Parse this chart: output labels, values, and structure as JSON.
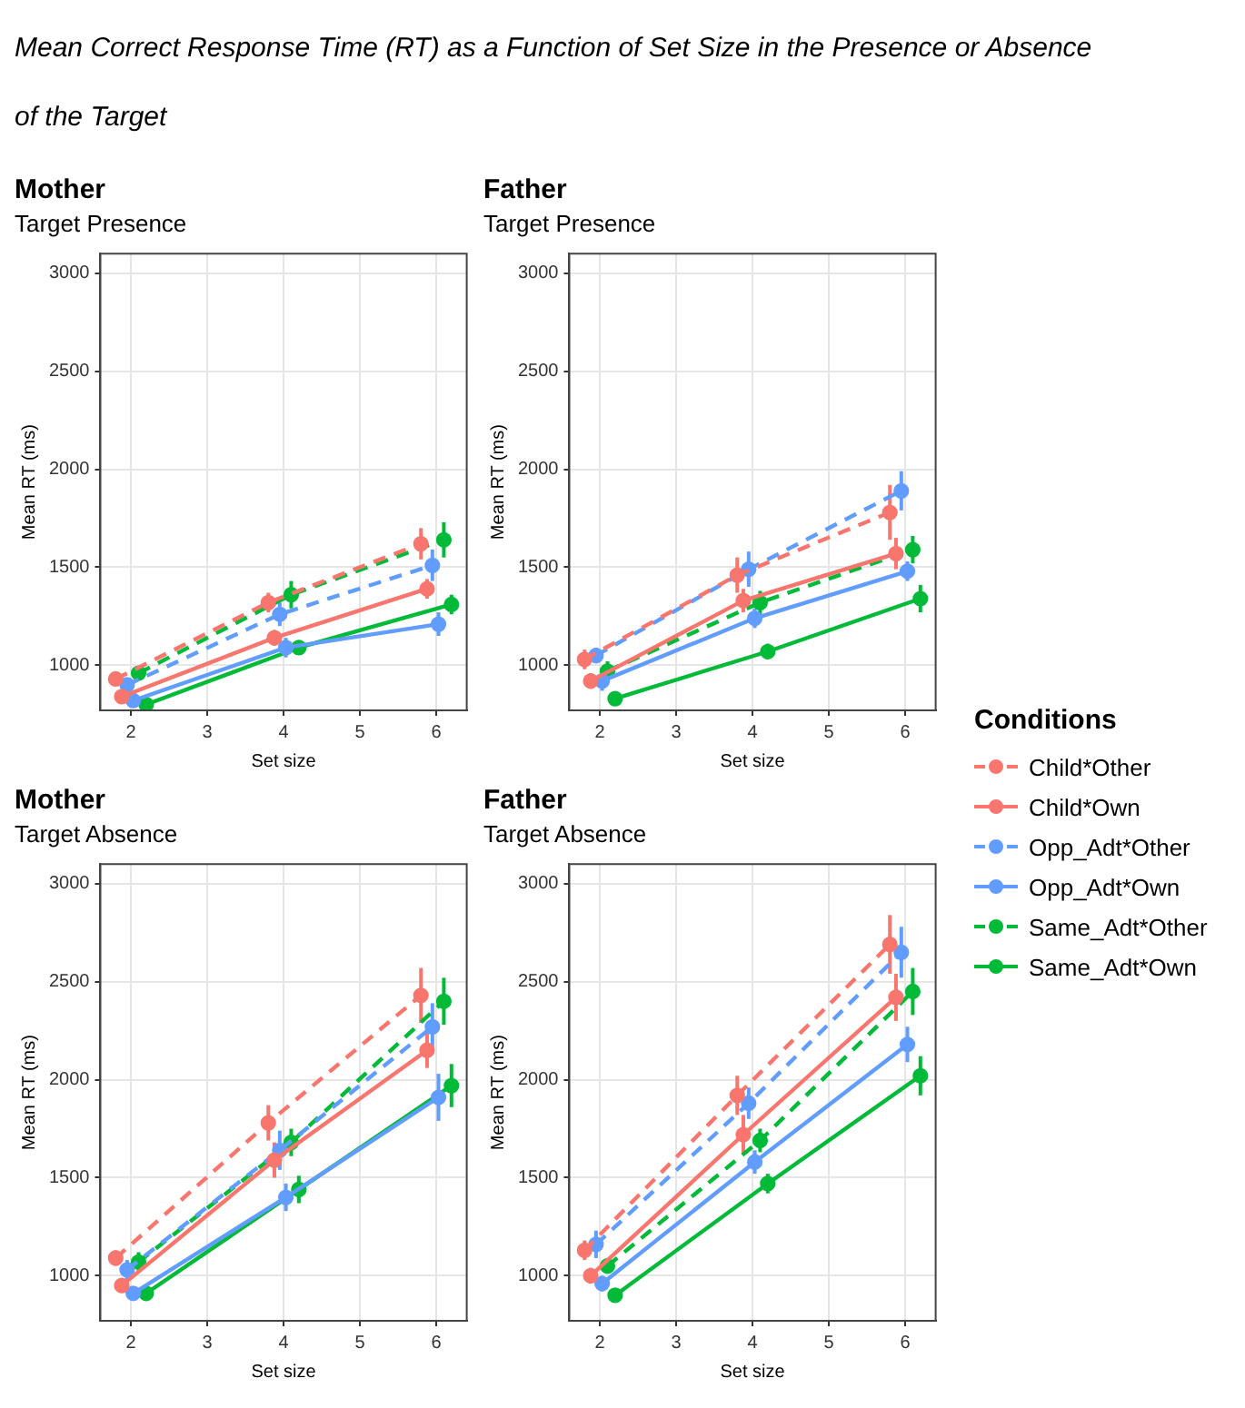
{
  "chart_data": [
    {
      "type": "line",
      "title": "Mother",
      "subtitle": "Target Presence",
      "annotations": [
        "Mean Correct Response Time (RT) as a Function of Set Size in the Presence or Absence of the Target"
      ],
      "legend_title": "Conditions",
      "legend": "right",
      "xlabel": "Set size",
      "ylabel": "Mean RT (ms)",
      "xlim": [
        1.6,
        6.4
      ],
      "xticks": [
        2,
        3,
        4,
        5,
        6
      ],
      "ylim": [
        770,
        3100
      ],
      "yticks": [
        1000,
        1500,
        2000,
        2500,
        3000
      ],
      "grid": true,
      "marker": "circle",
      "series": [
        {
          "name": "Child*Other",
          "color": "#f8766d",
          "line_style": "dashed",
          "x": [
            1.8,
            3.8,
            5.8
          ],
          "values": [
            930,
            1320,
            1620
          ],
          "errors": [
            30,
            50,
            80
          ]
        },
        {
          "name": "Child*Own",
          "color": "#f8766d",
          "line_style": "solid",
          "x": [
            1.88,
            3.88,
            5.88
          ],
          "values": [
            840,
            1140,
            1390
          ],
          "errors": [
            30,
            40,
            50
          ]
        },
        {
          "name": "Opp_Adt*Other",
          "color": "#619cff",
          "line_style": "dashed",
          "x": [
            1.95,
            3.95,
            5.95
          ],
          "values": [
            900,
            1260,
            1510
          ],
          "errors": [
            30,
            60,
            80
          ]
        },
        {
          "name": "Opp_Adt*Own",
          "color": "#619cff",
          "line_style": "solid",
          "x": [
            2.03,
            4.03,
            6.03
          ],
          "values": [
            820,
            1090,
            1210
          ],
          "errors": [
            30,
            50,
            60
          ]
        },
        {
          "name": "Same_Adt*Other",
          "color": "#00ba38",
          "line_style": "dashed",
          "x": [
            2.1,
            4.1,
            6.1
          ],
          "values": [
            960,
            1360,
            1640
          ],
          "errors": [
            30,
            70,
            90
          ]
        },
        {
          "name": "Same_Adt*Own",
          "color": "#00ba38",
          "line_style": "solid",
          "x": [
            2.2,
            4.2,
            6.2
          ],
          "values": [
            800,
            1090,
            1310
          ],
          "errors": [
            20,
            30,
            50
          ]
        }
      ]
    },
    {
      "type": "line",
      "title": "Father",
      "subtitle": "Target Presence",
      "xlabel": "Set size",
      "ylabel": "Mean RT (ms)",
      "xlim": [
        1.6,
        6.4
      ],
      "xticks": [
        2,
        3,
        4,
        5,
        6
      ],
      "ylim": [
        770,
        3100
      ],
      "yticks": [
        1000,
        1500,
        2000,
        2500,
        3000
      ],
      "grid": true,
      "marker": "circle",
      "series": [
        {
          "color": "#f8766d",
          "line_style": "dashed",
          "x": [
            1.8,
            3.8,
            5.8
          ],
          "values": [
            1030,
            1460,
            1780
          ],
          "errors": [
            50,
            90,
            140
          ]
        },
        {
          "color": "#f8766d",
          "line_style": "solid",
          "x": [
            1.88,
            3.88,
            5.88
          ],
          "values": [
            920,
            1330,
            1570
          ],
          "errors": [
            40,
            60,
            80
          ]
        },
        {
          "color": "#619cff",
          "line_style": "dashed",
          "x": [
            1.95,
            3.95,
            5.95
          ],
          "values": [
            1050,
            1490,
            1890
          ],
          "errors": [
            40,
            90,
            100
          ]
        },
        {
          "color": "#619cff",
          "line_style": "solid",
          "x": [
            2.03,
            4.03,
            6.03
          ],
          "values": [
            920,
            1240,
            1480
          ],
          "errors": [
            50,
            50,
            50
          ]
        },
        {
          "color": "#00ba38",
          "line_style": "dashed",
          "x": [
            2.1,
            4.1,
            6.1
          ],
          "values": [
            970,
            1320,
            1590
          ],
          "errors": [
            50,
            60,
            70
          ]
        },
        {
          "color": "#00ba38",
          "line_style": "solid",
          "x": [
            2.2,
            4.2,
            6.2
          ],
          "values": [
            830,
            1070,
            1340
          ],
          "errors": [
            30,
            40,
            70
          ]
        }
      ]
    },
    {
      "type": "line",
      "title": "Mother",
      "subtitle": "Target Absence",
      "xlabel": "Set size",
      "ylabel": "Mean RT (ms)",
      "xlim": [
        1.6,
        6.4
      ],
      "xticks": [
        2,
        3,
        4,
        5,
        6
      ],
      "ylim": [
        770,
        3100
      ],
      "yticks": [
        1000,
        1500,
        2000,
        2500,
        3000
      ],
      "grid": true,
      "marker": "circle",
      "series": [
        {
          "color": "#f8766d",
          "line_style": "dashed",
          "x": [
            1.8,
            3.8,
            5.8
          ],
          "values": [
            1090,
            1780,
            2430
          ],
          "errors": [
            40,
            90,
            140
          ]
        },
        {
          "color": "#f8766d",
          "line_style": "solid",
          "x": [
            1.88,
            3.88,
            5.88
          ],
          "values": [
            950,
            1590,
            2150
          ],
          "errors": [
            30,
            90,
            90
          ]
        },
        {
          "color": "#619cff",
          "line_style": "dashed",
          "x": [
            1.95,
            3.95,
            5.95
          ],
          "values": [
            1030,
            1640,
            2270
          ],
          "errors": [
            50,
            100,
            120
          ]
        },
        {
          "color": "#619cff",
          "line_style": "solid",
          "x": [
            2.03,
            4.03,
            6.03
          ],
          "values": [
            910,
            1400,
            1910
          ],
          "errors": [
            30,
            70,
            120
          ]
        },
        {
          "color": "#00ba38",
          "line_style": "dashed",
          "x": [
            2.1,
            4.1,
            6.1
          ],
          "values": [
            1070,
            1680,
            2400
          ],
          "errors": [
            50,
            70,
            120
          ]
        },
        {
          "color": "#00ba38",
          "line_style": "solid",
          "x": [
            2.2,
            4.2,
            6.2
          ],
          "values": [
            910,
            1440,
            1970
          ],
          "errors": [
            30,
            70,
            110
          ]
        }
      ]
    },
    {
      "type": "line",
      "title": "Father",
      "subtitle": "Target Absence",
      "xlabel": "Set size",
      "ylabel": "Mean RT (ms)",
      "xlim": [
        1.6,
        6.4
      ],
      "xticks": [
        2,
        3,
        4,
        5,
        6
      ],
      "ylim": [
        770,
        3100
      ],
      "yticks": [
        1000,
        1500,
        2000,
        2500,
        3000
      ],
      "grid": true,
      "marker": "circle",
      "series": [
        {
          "color": "#f8766d",
          "line_style": "dashed",
          "x": [
            1.8,
            3.8,
            5.8
          ],
          "values": [
            1130,
            1920,
            2690
          ],
          "errors": [
            50,
            100,
            150
          ]
        },
        {
          "color": "#f8766d",
          "line_style": "solid",
          "x": [
            1.88,
            3.88,
            5.88
          ],
          "values": [
            1000,
            1720,
            2420
          ],
          "errors": [
            40,
            100,
            120
          ]
        },
        {
          "color": "#619cff",
          "line_style": "dashed",
          "x": [
            1.95,
            3.95,
            5.95
          ],
          "values": [
            1160,
            1880,
            2650
          ],
          "errors": [
            70,
            80,
            130
          ]
        },
        {
          "color": "#619cff",
          "line_style": "solid",
          "x": [
            2.03,
            4.03,
            6.03
          ],
          "values": [
            960,
            1580,
            2180
          ],
          "errors": [
            40,
            60,
            90
          ]
        },
        {
          "color": "#00ba38",
          "line_style": "dashed",
          "x": [
            2.1,
            4.1,
            6.1
          ],
          "values": [
            1050,
            1690,
            2450
          ],
          "errors": [
            40,
            60,
            120
          ]
        },
        {
          "color": "#00ba38",
          "line_style": "solid",
          "x": [
            2.2,
            4.2,
            6.2
          ],
          "values": [
            900,
            1470,
            2020
          ],
          "errors": [
            20,
            50,
            100
          ]
        }
      ]
    }
  ]
}
